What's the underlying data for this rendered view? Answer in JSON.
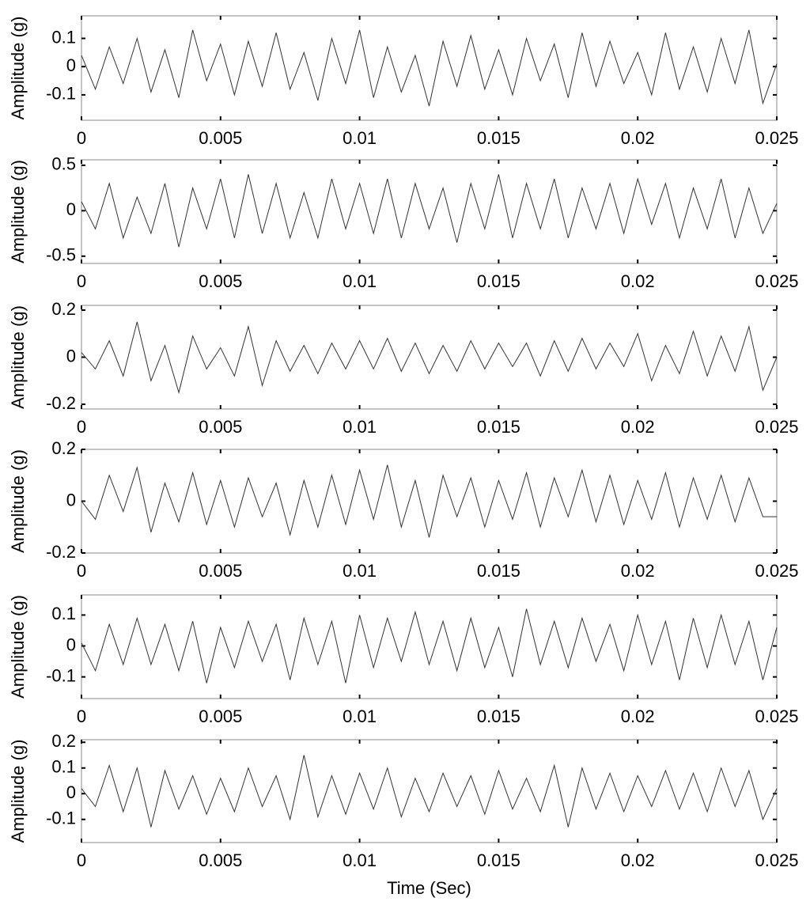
{
  "chart_data": [
    {
      "type": "line",
      "ylabel": "Amplitude (g)",
      "color": "#333333",
      "x": [
        0,
        0.0005,
        0.001,
        0.0015,
        0.002,
        0.0025,
        0.003,
        0.0035,
        0.004,
        0.0045,
        0.005,
        0.0055,
        0.006,
        0.0065,
        0.007,
        0.0075,
        0.008,
        0.0085,
        0.009,
        0.0095,
        0.01,
        0.0105,
        0.011,
        0.0115,
        0.012,
        0.0125,
        0.013,
        0.0135,
        0.014,
        0.0145,
        0.015,
        0.0155,
        0.016,
        0.0165,
        0.017,
        0.0175,
        0.018,
        0.0185,
        0.019,
        0.0195,
        0.02,
        0.0205,
        0.021,
        0.0215,
        0.022,
        0.0225,
        0.023,
        0.0235,
        0.024,
        0.0245,
        0.025
      ],
      "values": [
        0.04,
        -0.08,
        0.07,
        -0.06,
        0.1,
        -0.09,
        0.06,
        -0.11,
        0.13,
        -0.05,
        0.08,
        -0.1,
        0.09,
        -0.07,
        0.12,
        -0.08,
        0.05,
        -0.12,
        0.1,
        -0.06,
        0.13,
        -0.11,
        0.07,
        -0.09,
        0.04,
        -0.14,
        0.09,
        -0.07,
        0.11,
        -0.08,
        0.06,
        -0.1,
        0.1,
        -0.05,
        0.08,
        -0.11,
        0.12,
        -0.07,
        0.09,
        -0.06,
        0.05,
        -0.1,
        0.12,
        -0.08,
        0.07,
        -0.09,
        0.1,
        -0.06,
        0.13,
        -0.13,
        0.01
      ],
      "xlim": [
        0,
        0.025
      ],
      "xticks": [
        0,
        0.005,
        0.01,
        0.015,
        0.02,
        0.025
      ],
      "ylim": [
        -0.19,
        0.18
      ],
      "yticks": [
        -0.1,
        0,
        0.1
      ]
    },
    {
      "type": "line",
      "ylabel": "Amplitude (g)",
      "color": "#333333",
      "x": [
        0,
        0.0005,
        0.001,
        0.0015,
        0.002,
        0.0025,
        0.003,
        0.0035,
        0.004,
        0.0045,
        0.005,
        0.0055,
        0.006,
        0.0065,
        0.007,
        0.0075,
        0.008,
        0.0085,
        0.009,
        0.0095,
        0.01,
        0.0105,
        0.011,
        0.0115,
        0.012,
        0.0125,
        0.013,
        0.0135,
        0.014,
        0.0145,
        0.015,
        0.0155,
        0.016,
        0.0165,
        0.017,
        0.0175,
        0.018,
        0.0185,
        0.019,
        0.0195,
        0.02,
        0.0205,
        0.021,
        0.0215,
        0.022,
        0.0225,
        0.023,
        0.0235,
        0.024,
        0.0245,
        0.025
      ],
      "values": [
        0.1,
        -0.2,
        0.3,
        -0.3,
        0.15,
        -0.25,
        0.3,
        -0.4,
        0.25,
        -0.2,
        0.35,
        -0.3,
        0.4,
        -0.25,
        0.3,
        -0.3,
        0.2,
        -0.3,
        0.35,
        -0.2,
        0.3,
        -0.25,
        0.35,
        -0.3,
        0.3,
        -0.2,
        0.25,
        -0.35,
        0.3,
        -0.2,
        0.4,
        -0.3,
        0.3,
        -0.2,
        0.35,
        -0.3,
        0.25,
        -0.2,
        0.3,
        -0.25,
        0.35,
        -0.15,
        0.3,
        -0.3,
        0.25,
        -0.2,
        0.35,
        -0.3,
        0.25,
        -0.25,
        0.08
      ],
      "xlim": [
        0,
        0.025
      ],
      "xticks": [
        0,
        0.005,
        0.01,
        0.015,
        0.02,
        0.025
      ],
      "ylim": [
        -0.58,
        0.56
      ],
      "yticks": [
        -0.5,
        0,
        0.5
      ]
    },
    {
      "type": "line",
      "ylabel": "Amplitude (g)",
      "color": "#333333",
      "x": [
        0,
        0.0005,
        0.001,
        0.0015,
        0.002,
        0.0025,
        0.003,
        0.0035,
        0.004,
        0.0045,
        0.005,
        0.0055,
        0.006,
        0.0065,
        0.007,
        0.0075,
        0.008,
        0.0085,
        0.009,
        0.0095,
        0.01,
        0.0105,
        0.011,
        0.0115,
        0.012,
        0.0125,
        0.013,
        0.0135,
        0.014,
        0.0145,
        0.015,
        0.0155,
        0.016,
        0.0165,
        0.017,
        0.0175,
        0.018,
        0.0185,
        0.019,
        0.0195,
        0.02,
        0.0205,
        0.021,
        0.0215,
        0.022,
        0.0225,
        0.023,
        0.0235,
        0.024,
        0.0245,
        0.025
      ],
      "values": [
        0.02,
        -0.05,
        0.07,
        -0.08,
        0.15,
        -0.1,
        0.05,
        -0.15,
        0.09,
        -0.05,
        0.04,
        -0.08,
        0.13,
        -0.12,
        0.07,
        -0.06,
        0.05,
        -0.07,
        0.06,
        -0.05,
        0.07,
        -0.05,
        0.08,
        -0.06,
        0.06,
        -0.07,
        0.05,
        -0.06,
        0.07,
        -0.05,
        0.06,
        -0.04,
        0.06,
        -0.08,
        0.07,
        -0.06,
        0.08,
        -0.05,
        0.06,
        -0.04,
        0.1,
        -0.1,
        0.05,
        -0.07,
        0.11,
        -0.08,
        0.09,
        -0.06,
        0.13,
        -0.14,
        0.0
      ],
      "xlim": [
        0,
        0.025
      ],
      "xticks": [
        0,
        0.005,
        0.01,
        0.015,
        0.02,
        0.025
      ],
      "ylim": [
        -0.22,
        0.22
      ],
      "yticks": [
        -0.2,
        0,
        0.2
      ]
    },
    {
      "type": "line",
      "ylabel": "Amplitude (g)",
      "color": "#333333",
      "x": [
        0,
        0.0005,
        0.001,
        0.0015,
        0.002,
        0.0025,
        0.003,
        0.0035,
        0.004,
        0.0045,
        0.005,
        0.0055,
        0.006,
        0.0065,
        0.007,
        0.0075,
        0.008,
        0.0085,
        0.009,
        0.0095,
        0.01,
        0.0105,
        0.011,
        0.0115,
        0.012,
        0.0125,
        0.013,
        0.0135,
        0.014,
        0.0145,
        0.015,
        0.0155,
        0.016,
        0.0165,
        0.017,
        0.0175,
        0.018,
        0.0185,
        0.019,
        0.0195,
        0.02,
        0.0205,
        0.021,
        0.0215,
        0.022,
        0.0225,
        0.023,
        0.0235,
        0.024,
        0.0245,
        0.025
      ],
      "values": [
        0.0,
        -0.07,
        0.1,
        -0.04,
        0.13,
        -0.12,
        0.07,
        -0.08,
        0.11,
        -0.09,
        0.08,
        -0.1,
        0.09,
        -0.06,
        0.07,
        -0.13,
        0.08,
        -0.1,
        0.1,
        -0.09,
        0.12,
        -0.07,
        0.14,
        -0.1,
        0.08,
        -0.14,
        0.1,
        -0.06,
        0.09,
        -0.1,
        0.08,
        -0.07,
        0.11,
        -0.1,
        0.09,
        -0.06,
        0.12,
        -0.08,
        0.1,
        -0.09,
        0.08,
        -0.07,
        0.11,
        -0.1,
        0.09,
        -0.07,
        0.1,
        -0.08,
        0.09,
        -0.06,
        -0.06
      ],
      "xlim": [
        0,
        0.025
      ],
      "xticks": [
        0,
        0.005,
        0.01,
        0.015,
        0.02,
        0.025
      ],
      "ylim": [
        -0.2,
        0.2
      ],
      "yticks": [
        -0.2,
        0,
        0.2
      ]
    },
    {
      "type": "line",
      "ylabel": "Amplitude (g)",
      "color": "#333333",
      "x": [
        0,
        0.0005,
        0.001,
        0.0015,
        0.002,
        0.0025,
        0.003,
        0.0035,
        0.004,
        0.0045,
        0.005,
        0.0055,
        0.006,
        0.0065,
        0.007,
        0.0075,
        0.008,
        0.0085,
        0.009,
        0.0095,
        0.01,
        0.0105,
        0.011,
        0.0115,
        0.012,
        0.0125,
        0.013,
        0.0135,
        0.014,
        0.0145,
        0.015,
        0.0155,
        0.016,
        0.0165,
        0.017,
        0.0175,
        0.018,
        0.0185,
        0.019,
        0.0195,
        0.02,
        0.0205,
        0.021,
        0.0215,
        0.022,
        0.0225,
        0.023,
        0.0235,
        0.024,
        0.0245,
        0.025
      ],
      "values": [
        0.01,
        -0.08,
        0.07,
        -0.06,
        0.09,
        -0.06,
        0.07,
        -0.08,
        0.08,
        -0.12,
        0.06,
        -0.07,
        0.08,
        -0.05,
        0.07,
        -0.11,
        0.09,
        -0.06,
        0.08,
        -0.12,
        0.1,
        -0.07,
        0.09,
        -0.05,
        0.11,
        -0.06,
        0.08,
        -0.08,
        0.09,
        -0.07,
        0.06,
        -0.1,
        0.12,
        -0.06,
        0.08,
        -0.07,
        0.09,
        -0.05,
        0.07,
        -0.08,
        0.1,
        -0.06,
        0.08,
        -0.11,
        0.09,
        -0.07,
        0.1,
        -0.06,
        0.08,
        -0.11,
        0.06
      ],
      "xlim": [
        0,
        0.025
      ],
      "xticks": [
        0,
        0.005,
        0.01,
        0.015,
        0.02,
        0.025
      ],
      "ylim": [
        -0.17,
        0.165
      ],
      "yticks": [
        -0.1,
        0,
        0.1
      ]
    },
    {
      "type": "line",
      "ylabel": "Amplitude (g)",
      "xlabel": "Time (Sec)",
      "color": "#333333",
      "x": [
        0,
        0.0005,
        0.001,
        0.0015,
        0.002,
        0.0025,
        0.003,
        0.0035,
        0.004,
        0.0045,
        0.005,
        0.0055,
        0.006,
        0.0065,
        0.007,
        0.0075,
        0.008,
        0.0085,
        0.009,
        0.0095,
        0.01,
        0.0105,
        0.011,
        0.0115,
        0.012,
        0.0125,
        0.013,
        0.0135,
        0.014,
        0.0145,
        0.015,
        0.0155,
        0.016,
        0.0165,
        0.017,
        0.0175,
        0.018,
        0.0185,
        0.019,
        0.0195,
        0.02,
        0.0205,
        0.021,
        0.0215,
        0.022,
        0.0225,
        0.023,
        0.0235,
        0.024,
        0.0245,
        0.025
      ],
      "values": [
        0.02,
        -0.05,
        0.11,
        -0.07,
        0.1,
        -0.13,
        0.09,
        -0.06,
        0.07,
        -0.08,
        0.06,
        -0.07,
        0.1,
        -0.05,
        0.07,
        -0.1,
        0.15,
        -0.09,
        0.07,
        -0.08,
        0.08,
        -0.06,
        0.1,
        -0.09,
        0.06,
        -0.07,
        0.08,
        -0.05,
        0.07,
        -0.08,
        0.09,
        -0.06,
        0.06,
        -0.07,
        0.11,
        -0.13,
        0.1,
        -0.06,
        0.08,
        -0.07,
        0.07,
        -0.05,
        0.09,
        -0.06,
        0.08,
        -0.07,
        0.1,
        -0.05,
        0.09,
        -0.1,
        0.02
      ],
      "xlim": [
        0,
        0.025
      ],
      "xticks": [
        0,
        0.005,
        0.01,
        0.015,
        0.02,
        0.025
      ],
      "ylim": [
        -0.19,
        0.21
      ],
      "yticks": [
        -0.1,
        0,
        0.1,
        0.2
      ]
    }
  ]
}
